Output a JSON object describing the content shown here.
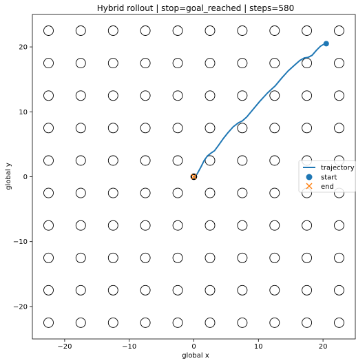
{
  "chart_data": {
    "type": "scatter",
    "title": "Hybrid rollout | stop=goal_reached | steps=580",
    "xlabel": "global x",
    "ylabel": "global y",
    "xlim": [
      -25,
      25
    ],
    "ylim": [
      -25,
      25
    ],
    "xticks": [
      -20,
      -10,
      0,
      10,
      20
    ],
    "yticks": [
      -20,
      -10,
      0,
      10,
      20
    ],
    "xtick_labels": [
      "−20",
      "−10",
      "0",
      "10",
      "20"
    ],
    "ytick_labels": [
      "−20",
      "−10",
      "0",
      "10",
      "20"
    ],
    "grid": false,
    "obstacles": {
      "marker": "circle-open",
      "color": "#000000",
      "x": [
        -22.5,
        -17.5,
        -12.5,
        -7.5,
        -2.5,
        2.5,
        7.5,
        12.5,
        17.5,
        22.5
      ],
      "y": [
        22.5,
        17.5,
        12.5,
        7.5,
        2.5,
        -2.5,
        -7.5,
        -12.5,
        -17.5,
        -22.5
      ]
    },
    "series": [
      {
        "name": "trajectory",
        "kind": "line",
        "color": "#1f77b4",
        "x": [
          0,
          0.5,
          1.1,
          1.6,
          2.1,
          2.6,
          3.2,
          3.8,
          4.5,
          5.3,
          6.1,
          6.9,
          7.5,
          8.2,
          9.1,
          10.2,
          11.4,
          12.6,
          13.6,
          14.6,
          15.6,
          16.4,
          17.1,
          17.7,
          18.3,
          19.0,
          19.6,
          20.1,
          20.5
        ],
        "y": [
          0,
          0.4,
          1.5,
          2.5,
          3.2,
          3.6,
          4.0,
          4.8,
          5.8,
          6.8,
          7.7,
          8.3,
          8.6,
          9.2,
          10.3,
          11.6,
          12.9,
          14.0,
          15.2,
          16.3,
          17.2,
          17.9,
          18.3,
          18.4,
          18.7,
          19.5,
          20.1,
          20.4,
          20.5
        ]
      },
      {
        "name": "start",
        "kind": "point",
        "color": "#1f77b4",
        "x": [
          20.5
        ],
        "y": [
          20.5
        ]
      },
      {
        "name": "end",
        "kind": "x-marker",
        "color": "#ff7f0e",
        "x": [
          0.0
        ],
        "y": [
          0.0
        ]
      }
    ],
    "goal_marker": {
      "x": 0,
      "y": 0,
      "color": "#000000"
    },
    "legend": {
      "placement": "right",
      "entries": [
        "trajectory",
        "start",
        "end"
      ]
    }
  }
}
